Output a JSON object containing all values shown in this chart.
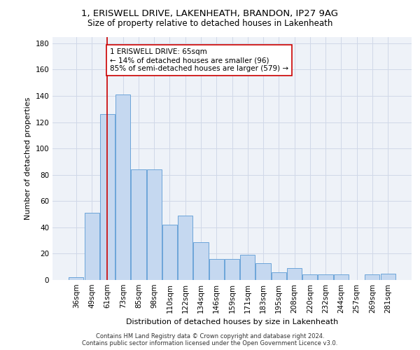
{
  "title_line1": "1, ERISWELL DRIVE, LAKENHEATH, BRANDON, IP27 9AG",
  "title_line2": "Size of property relative to detached houses in Lakenheath",
  "xlabel": "Distribution of detached houses by size in Lakenheath",
  "ylabel": "Number of detached properties",
  "footer_line1": "Contains HM Land Registry data © Crown copyright and database right 2024.",
  "footer_line2": "Contains public sector information licensed under the Open Government Licence v3.0.",
  "categories": [
    "36sqm",
    "49sqm",
    "61sqm",
    "73sqm",
    "85sqm",
    "98sqm",
    "110sqm",
    "122sqm",
    "134sqm",
    "146sqm",
    "159sqm",
    "171sqm",
    "183sqm",
    "195sqm",
    "208sqm",
    "220sqm",
    "232sqm",
    "244sqm",
    "257sqm",
    "269sqm",
    "281sqm"
  ],
  "values": [
    2,
    51,
    126,
    141,
    84,
    84,
    42,
    49,
    29,
    16,
    16,
    19,
    13,
    6,
    9,
    4,
    4,
    4,
    0,
    4,
    5
  ],
  "bar_color": "#c5d8f0",
  "bar_edge_color": "#5b9bd5",
  "grid_color": "#d0d8e8",
  "background_color": "#eef2f8",
  "vline_color": "#cc0000",
  "vline_x": 2.0,
  "annotation_text": "1 ERISWELL DRIVE: 65sqm\n← 14% of detached houses are smaller (96)\n85% of semi-detached houses are larger (579) →",
  "annotation_box_color": "#ffffff",
  "annotation_box_edge_color": "#cc0000",
  "ylim": [
    0,
    185
  ],
  "yticks": [
    0,
    20,
    40,
    60,
    80,
    100,
    120,
    140,
    160,
    180
  ],
  "title1_fontsize": 9.5,
  "title2_fontsize": 8.5,
  "footer_fontsize": 6.0,
  "ylabel_fontsize": 8.0,
  "xlabel_fontsize": 8.0,
  "tick_fontsize": 7.5,
  "annot_fontsize": 7.5
}
